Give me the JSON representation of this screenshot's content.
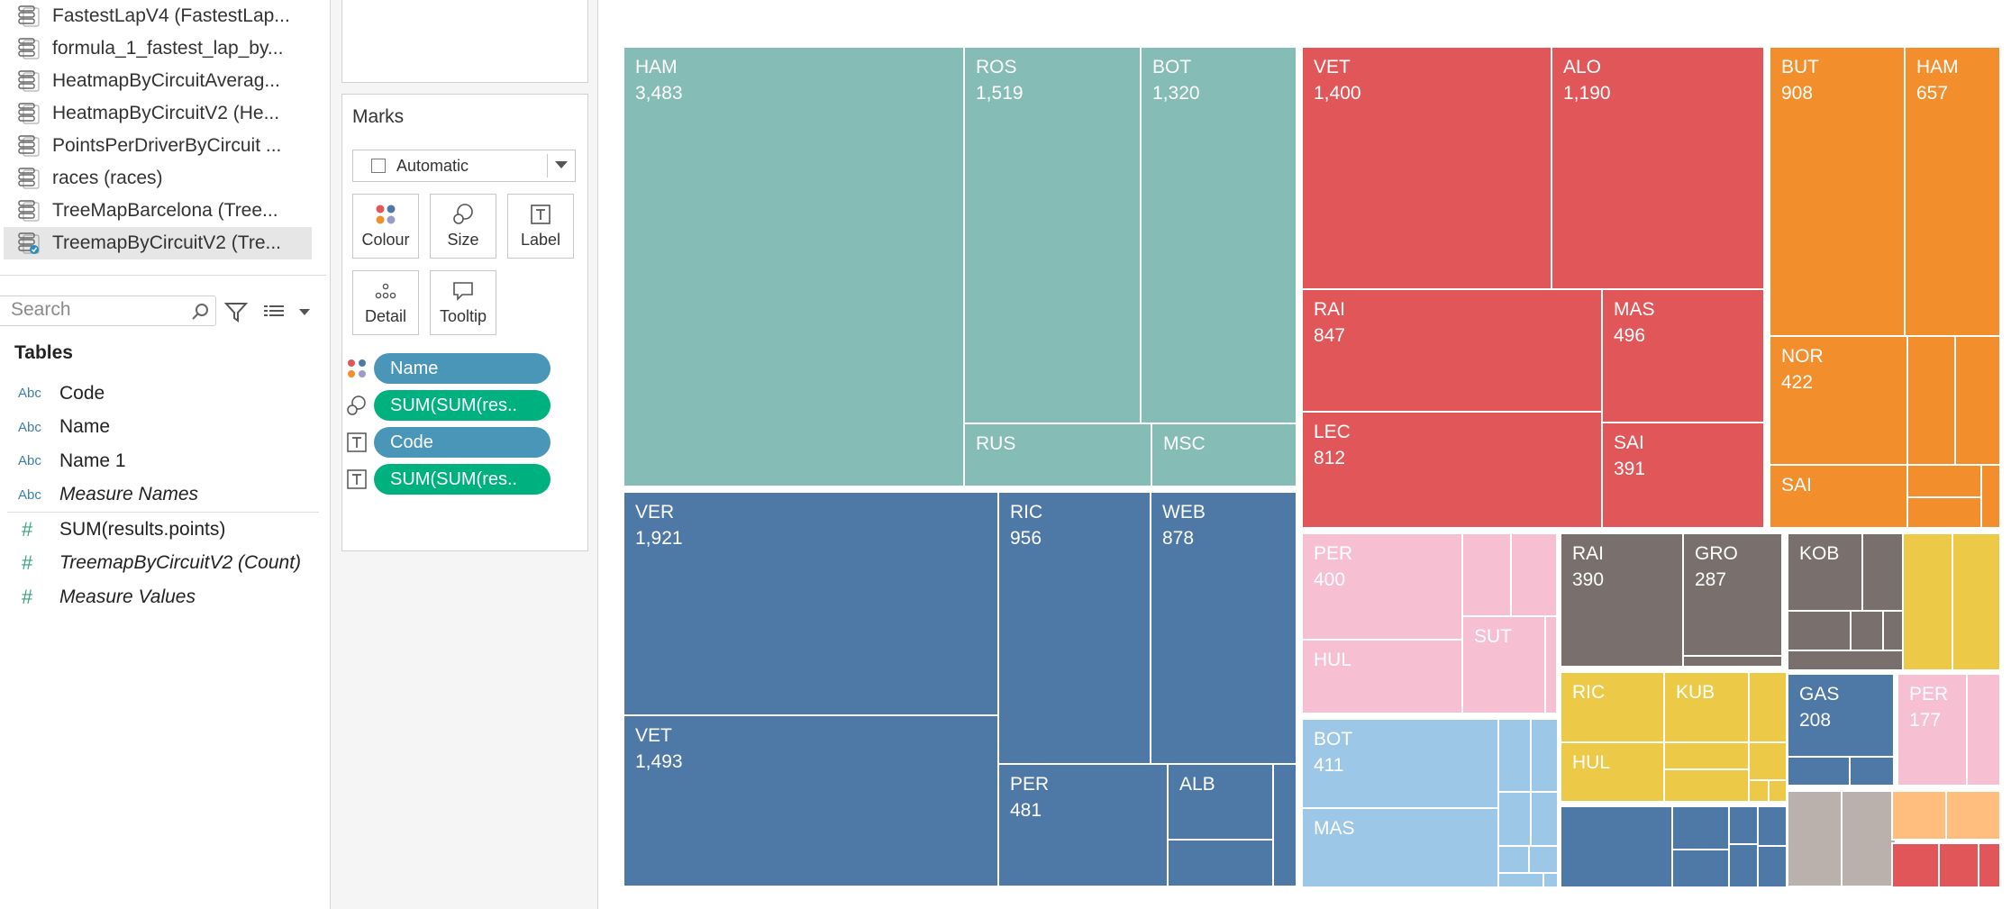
{
  "data_sources": [
    {
      "label": "FastestLapV4 (FastestLap...",
      "selected": false
    },
    {
      "label": "formula_1_fastest_lap_by...",
      "selected": false
    },
    {
      "label": "HeatmapByCircuitAverag...",
      "selected": false
    },
    {
      "label": "HeatmapByCircuitV2 (He...",
      "selected": false
    },
    {
      "label": "PointsPerDriverByCircuit ...",
      "selected": false
    },
    {
      "label": "races (races)",
      "selected": false
    },
    {
      "label": "TreeMapBarcelona (Tree...",
      "selected": false
    },
    {
      "label": "TreemapByCircuitV2 (Tre...",
      "selected": true
    }
  ],
  "search": {
    "placeholder": "Search"
  },
  "tables": {
    "title": "Tables",
    "dimensions": [
      {
        "type": "Abc",
        "name": "Code",
        "italic": false
      },
      {
        "type": "Abc",
        "name": "Name",
        "italic": false
      },
      {
        "type": "Abc",
        "name": "Name 1",
        "italic": false
      },
      {
        "type": "Abc",
        "name": "Measure Names",
        "italic": true
      }
    ],
    "measures": [
      {
        "type": "#",
        "name": "SUM(results.points)",
        "italic": false
      },
      {
        "type": "#",
        "name": "TreemapByCircuitV2 (Count)",
        "italic": true
      },
      {
        "type": "#",
        "name": "Measure Values",
        "italic": true
      }
    ]
  },
  "marks": {
    "title": "Marks",
    "mark_type": "Automatic",
    "buttons": {
      "colour": "Colour",
      "size": "Size",
      "label": "Label",
      "detail": "Detail",
      "tooltip": "Tooltip"
    },
    "pills": [
      {
        "icon": "colour-icon",
        "label": "Name",
        "color": "blue"
      },
      {
        "icon": "size-icon",
        "label": "SUM(SUM(res..",
        "color": "green"
      },
      {
        "icon": "label-icon",
        "label": "Code",
        "color": "blue"
      },
      {
        "icon": "label-icon",
        "label": "SUM(SUM(res..",
        "color": "green"
      }
    ]
  },
  "chart_data": {
    "type": "treemap",
    "size_measure": "SUM(SUM(results.points))",
    "color_field": "Name",
    "label_fields": [
      "Code",
      "SUM(SUM(results.points))"
    ],
    "groups": [
      {
        "color": "#86bcb6",
        "items": [
          {
            "code": "HAM",
            "value": 3483
          },
          {
            "code": "ROS",
            "value": 1519
          },
          {
            "code": "BOT",
            "value": 1320
          },
          {
            "code": "RUS",
            "value": null
          },
          {
            "code": "MSC",
            "value": null
          }
        ]
      },
      {
        "color": "#4e79a7",
        "items": [
          {
            "code": "VER",
            "value": 1921
          },
          {
            "code": "VET",
            "value": 1493
          },
          {
            "code": "RIC",
            "value": 956
          },
          {
            "code": "WEB",
            "value": 878
          },
          {
            "code": "PER",
            "value": 481
          },
          {
            "code": "ALB",
            "value": null
          }
        ]
      },
      {
        "color": "#e15759",
        "items": [
          {
            "code": "VET",
            "value": 1400
          },
          {
            "code": "ALO",
            "value": 1190
          },
          {
            "code": "RAI",
            "value": 847
          },
          {
            "code": "MAS",
            "value": 496
          },
          {
            "code": "LEC",
            "value": 812
          },
          {
            "code": "SAI",
            "value": 391
          }
        ]
      },
      {
        "color": "#f28e2b",
        "items": [
          {
            "code": "BUT",
            "value": 908
          },
          {
            "code": "HAM",
            "value": 657
          },
          {
            "code": "NOR",
            "value": 422
          },
          {
            "code": "SAI",
            "value": null
          }
        ]
      },
      {
        "color": "#f7c0d2",
        "items": [
          {
            "code": "PER",
            "value": 400
          },
          {
            "code": "HUL",
            "value": null
          },
          {
            "code": "SUT",
            "value": null
          },
          {
            "code": "PER",
            "value": 177
          }
        ]
      },
      {
        "color": "#796f6d",
        "items": [
          {
            "code": "RAI",
            "value": 390
          },
          {
            "code": "GRO",
            "value": 287
          },
          {
            "code": "KOB",
            "value": null
          }
        ]
      },
      {
        "color": "#9dc7e6",
        "items": [
          {
            "code": "BOT",
            "value": 411
          },
          {
            "code": "MAS",
            "value": null
          }
        ]
      },
      {
        "color": "#edc948",
        "items": [
          {
            "code": "RIC",
            "value": null
          },
          {
            "code": "KUB",
            "value": null
          },
          {
            "code": "HUL",
            "value": null
          }
        ]
      },
      {
        "color": "#4e79a7",
        "items": [
          {
            "code": "GAS",
            "value": 208
          }
        ]
      }
    ]
  }
}
